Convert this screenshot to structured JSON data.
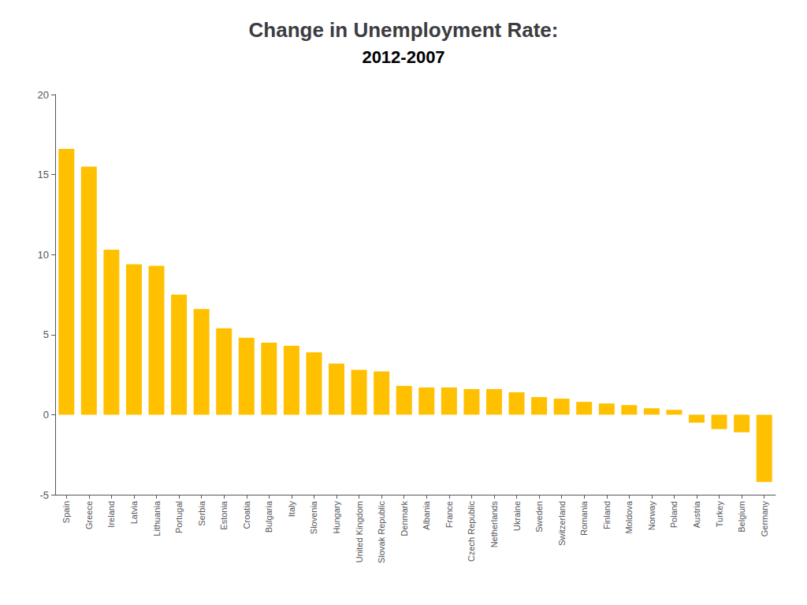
{
  "chart_data": {
    "type": "bar",
    "title": "Change in Unemployment Rate:",
    "subtitle": "2012-2007",
    "categories": [
      "Spain",
      "Greece",
      "Ireland",
      "Latvia",
      "Lithuania",
      "Portugal",
      "Serbia",
      "Estonia",
      "Croatia",
      "Bulgaria",
      "Italy",
      "Slovenia",
      "Hungary",
      "United Kingdom",
      "Slovak Republic",
      "Denmark",
      "Albania",
      "France",
      "Czech Republic",
      "Netherlands",
      "Ukraine",
      "Sweden",
      "Switzerland",
      "Romania",
      "Finland",
      "Moldova",
      "Norway",
      "Poland",
      "Austria",
      "Turkey",
      "Belgium",
      "Germany"
    ],
    "values": [
      16.6,
      15.5,
      10.3,
      9.4,
      9.3,
      7.5,
      6.6,
      5.4,
      4.8,
      4.5,
      4.3,
      3.9,
      3.2,
      2.8,
      2.7,
      1.8,
      1.7,
      1.7,
      1.6,
      1.6,
      1.4,
      1.1,
      1.0,
      0.8,
      0.7,
      0.6,
      0.4,
      0.3,
      -0.5,
      -0.9,
      -1.1,
      -4.2
    ],
    "color": "#FFC000",
    "ylim": [
      -5,
      20
    ],
    "yticks": [
      -5,
      0,
      5,
      10,
      15,
      20
    ],
    "grid": false
  }
}
